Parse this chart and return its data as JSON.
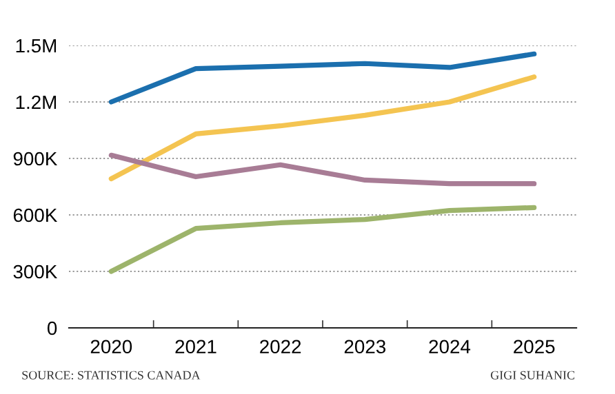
{
  "chart_data": {
    "type": "line",
    "categories": [
      "2020",
      "2021",
      "2022",
      "2023",
      "2024",
      "2025"
    ],
    "series": [
      {
        "color": "#1b6fae",
        "values": [
          1200000,
          1377000,
          1390000,
          1404000,
          1383000,
          1455000
        ]
      },
      {
        "color": "#f4c451",
        "values": [
          792000,
          1030000,
          1073000,
          1129000,
          1200000,
          1333000
        ]
      },
      {
        "color": "#a87c95",
        "values": [
          917000,
          803000,
          866000,
          785000,
          766000,
          766000
        ]
      },
      {
        "color": "#9db46b",
        "values": [
          300000,
          528000,
          558000,
          576000,
          623000,
          639000
        ]
      }
    ],
    "ylim": [
      0,
      1500000
    ],
    "yticks": [
      {
        "value": 0,
        "label": "0"
      },
      {
        "value": 300000,
        "label": "300K"
      },
      {
        "value": 600000,
        "label": "600K"
      },
      {
        "value": 900000,
        "label": "900K"
      },
      {
        "value": 1200000,
        "label": "1.2M"
      },
      {
        "value": 1500000,
        "label": "1.5M"
      }
    ],
    "grid": "y",
    "marker": "none",
    "line_style": "solid",
    "annotations": [
      "SOURCE: STATISTICS CANADA",
      "GIGI SUHANIC"
    ]
  }
}
